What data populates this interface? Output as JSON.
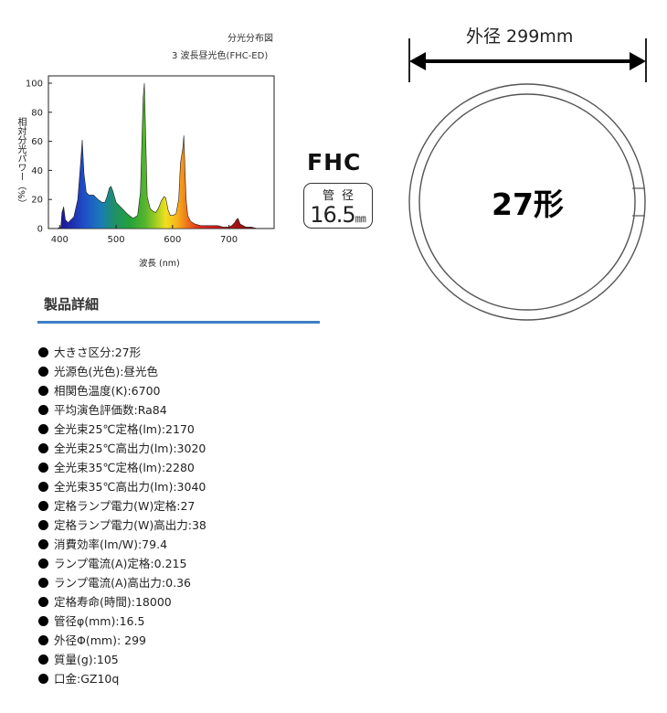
{
  "chart": {
    "title_line1": "分光分布図",
    "title_line2": "3 波長昼光色(FHC-ED)",
    "ylabel": "相対分光パワー（%）",
    "xlabel": "波長 (nm)",
    "y_ticks": [
      "0",
      "20",
      "40",
      "60",
      "80",
      "100"
    ],
    "x_ticks": [
      "400",
      "500",
      "600",
      "700"
    ]
  },
  "chart_data": {
    "type": "area",
    "xlabel": "波長 (nm)",
    "ylabel": "相対分光パワー（%）",
    "xlim": [
      380,
      780
    ],
    "ylim": [
      0,
      100
    ],
    "grid": false,
    "series": [
      {
        "x": [
          380,
          395,
          402,
          404,
          407,
          410,
          415,
          425,
          432,
          437,
          440,
          443,
          447,
          452,
          460,
          468,
          475,
          480,
          484,
          488,
          491,
          494,
          500,
          510,
          520,
          530,
          538,
          543,
          546,
          548,
          550,
          552,
          555,
          560,
          565,
          570,
          575,
          580,
          585,
          588,
          592,
          596,
          600,
          606,
          611,
          614,
          618,
          620,
          622,
          624,
          627,
          632,
          640,
          650,
          660,
          670,
          680,
          690,
          700,
          705,
          710,
          713,
          716,
          720,
          730,
          740,
          750,
          760,
          770,
          780
        ],
        "y": [
          0,
          0,
          1,
          11,
          15,
          6,
          4,
          8,
          20,
          45,
          61,
          38,
          25,
          23,
          23,
          20,
          18,
          18,
          22,
          28,
          29,
          26,
          18,
          14,
          10,
          7,
          9,
          25,
          65,
          90,
          100,
          70,
          22,
          14,
          12,
          11,
          14,
          19,
          22,
          21,
          13,
          9,
          9,
          10,
          20,
          45,
          55,
          64,
          42,
          20,
          9,
          5,
          3,
          2,
          2,
          2,
          2,
          1,
          1,
          2,
          4,
          6,
          7,
          3,
          1,
          1,
          0,
          0,
          0,
          0
        ]
      }
    ]
  },
  "fhc": {
    "title": "FHC",
    "tube_label": "管径",
    "tube_value": "16.5",
    "tube_unit": "㎜"
  },
  "ring": {
    "dimension_label": "外径 299mm",
    "size_label": "27形"
  },
  "section_title": "製品詳細",
  "specs": [
    "大きさ区分:27形",
    "光源色(光色):昼光色",
    "相関色温度(K):6700",
    "平均演色評価数:Ra84",
    "全光束25℃定格(lm):2170",
    "全光束25℃高出力(lm):3020",
    "全光束35℃定格(lm):2280",
    "全光束35℃高出力(lm):3040",
    "定格ランプ電力(W)定格:27",
    "定格ランプ電力(W)高出力:38",
    "消費効率(lm/W):79.4",
    "ランプ電流(A)定格:0.215",
    "ランプ電流(A)高出力:0.36",
    "定格寿命(時間):18000",
    "管径φ(mm):16.5",
    "外径Φ(mm): 299",
    "質量(g):105",
    "口金:GZ10q"
  ]
}
